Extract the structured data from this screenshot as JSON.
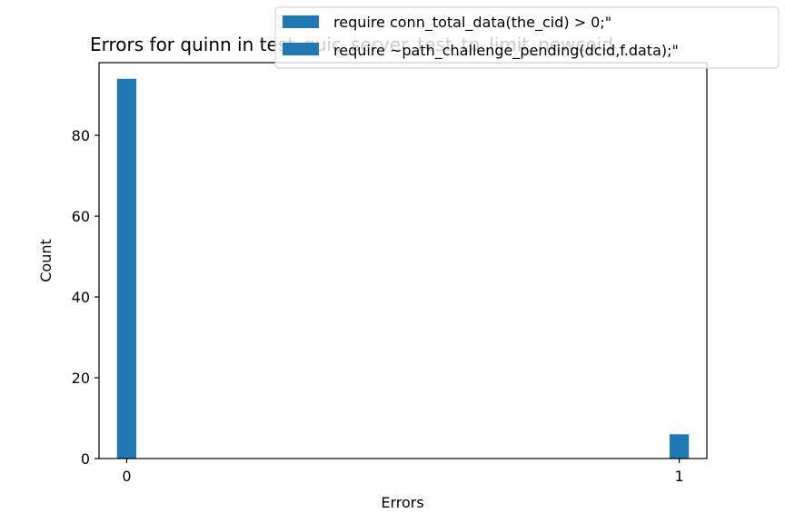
{
  "chart_data": {
    "type": "bar",
    "title": "Errors for quinn in test_quic_server_test_tp_limit_newcoid",
    "xlabel": "Errors",
    "ylabel": "Count",
    "xlim": [
      -0.05,
      1.05
    ],
    "ylim": [
      0,
      98
    ],
    "x_ticks": [
      0,
      1
    ],
    "x_tick_labels": [
      "0",
      "1"
    ],
    "y_ticks": [
      0,
      20,
      40,
      60,
      80
    ],
    "y_tick_labels": [
      "0",
      "20",
      "40",
      "60",
      "80"
    ],
    "grid": false,
    "legend_placement": "top-right",
    "bar_width": 0.035,
    "series": [
      {
        "name": "require conn_total_data(the_cid) > 0;\"",
        "color": "#1f77b4",
        "x": [
          0,
          1
        ],
        "values": [
          94,
          6
        ]
      },
      {
        "name": "require ~path_challenge_pending(dcid,f.data);\"",
        "color": "#1f77b4",
        "x": [
          0,
          1
        ],
        "values": [
          0,
          0
        ]
      }
    ]
  }
}
